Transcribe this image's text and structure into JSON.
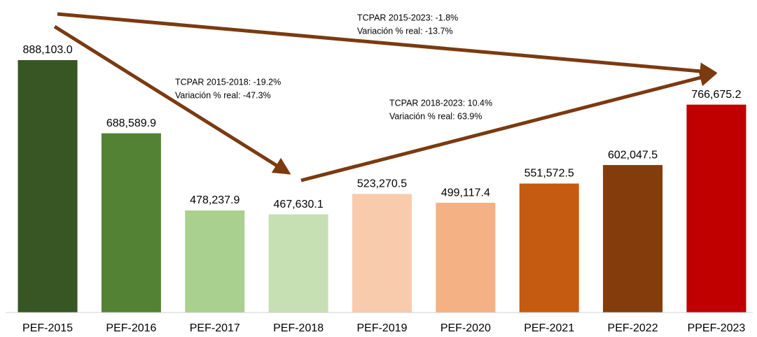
{
  "chart_data": {
    "type": "bar",
    "categories": [
      "PEF-2015",
      "PEF-2016",
      "PEF-2017",
      "PEF-2018",
      "PEF-2019",
      "PEF-2020",
      "PEF-2021",
      "PEF-2022",
      "PPEF-2023"
    ],
    "values": [
      888103.0,
      688589.9,
      478237.9,
      467630.1,
      523270.5,
      499117.4,
      551572.5,
      602047.5,
      766675.2
    ],
    "value_labels": [
      "888,103.0",
      "688,589.9",
      "478,237.9",
      "467,630.1",
      "523,270.5",
      "499,117.4",
      "551,572.5",
      "602,047.5",
      "766,675.2"
    ],
    "colors": [
      "#375623",
      "#548235",
      "#a9d08e",
      "#c6e0b4",
      "#f8cbad",
      "#f4b183",
      "#c55a11",
      "#843c0c",
      "#c00000"
    ],
    "ylim": [
      200000,
      1050000
    ],
    "annotations": [
      [
        "TCPAR 2015-2023: -1.8%",
        "Variación % real: -13.7%"
      ],
      [
        "TCPAR 2015-2018: -19.2%",
        "Variación % real: -47.3%"
      ],
      [
        "TCPAR 2018-2023: 10.4%",
        "Variación % real: 63.9%"
      ]
    ]
  }
}
